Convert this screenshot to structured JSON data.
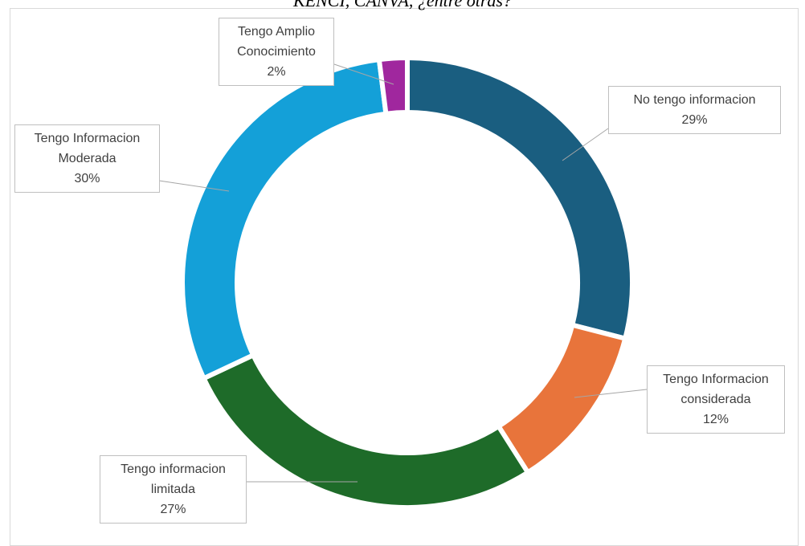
{
  "chart_data": {
    "type": "donut",
    "subtitle": "KENCI, CANVA, ¿entre otras?",
    "categories": [
      "No tengo informacion",
      "Tengo Informacion considerada",
      "Tengo informacion limitada",
      "Tengo Informacion Moderada",
      "Tengo Amplio Conocimiento"
    ],
    "values": [
      29,
      12,
      27,
      30,
      2
    ],
    "value_labels": [
      "29%",
      "12%",
      "27%",
      "30%",
      "2%"
    ],
    "colors": [
      "#1a5e80",
      "#e8743b",
      "#1e6b29",
      "#14a0d8",
      "#a0279e"
    ]
  }
}
